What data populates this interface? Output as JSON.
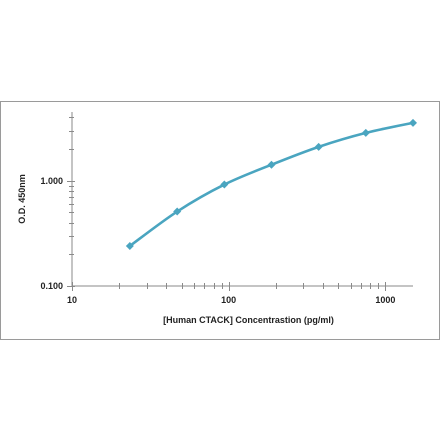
{
  "chart_data": {
    "type": "line",
    "title": "",
    "xlabel": "[Human CTACK] Concentrastion (pg/ml)",
    "ylabel": "O.D. 450nm",
    "x_scale": "log",
    "y_scale": "log",
    "xlim": [
      10,
      1500
    ],
    "ylim": [
      0.1,
      4.5
    ],
    "x_tick_labels": [
      "10",
      "100",
      "1000"
    ],
    "y_tick_labels": [
      "0.100",
      "1.000"
    ],
    "grid": false,
    "legend": "none",
    "series": [
      {
        "x": [
          23.4,
          46.9,
          93.8,
          187.5,
          375,
          750,
          1500
        ],
        "y": [
          0.24,
          0.51,
          0.92,
          1.42,
          2.1,
          2.85,
          3.55
        ]
      }
    ],
    "colors": {
      "series": "#4aa5c0",
      "axis": "#8a8a8a",
      "text": "#222222",
      "frame": "#9a9a9a"
    },
    "marker": "diamond"
  }
}
